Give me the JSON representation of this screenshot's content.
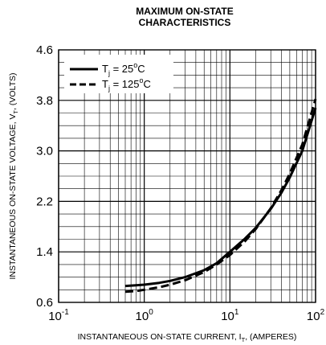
{
  "chart_data": {
    "type": "line",
    "title": [
      "MAXIMUM ON-STATE",
      "CHARACTERISTICS"
    ],
    "xlabel": {
      "prefix": "INSTANTANEOUS ON-STATE CURRENT, I",
      "sub": "T",
      "suffix": ", (AMPERES)"
    },
    "ylabel": {
      "prefix": "INSTANTANEOUS ON-STATE VOLTAGE, V",
      "sub": "T",
      "suffix": ", (VOLTS)"
    },
    "x_scale": "log",
    "xlim": [
      0.1,
      100
    ],
    "ylim": [
      0.6,
      4.6
    ],
    "x_ticks": [
      {
        "base": "10",
        "exp": "-1"
      },
      {
        "base": "10",
        "exp": "0"
      },
      {
        "base": "10",
        "exp": "1"
      },
      {
        "base": "10",
        "exp": "2"
      }
    ],
    "y_ticks": [
      "0.6",
      "1.4",
      "2.2",
      "3.0",
      "3.8",
      "4.6"
    ],
    "grid": true,
    "legend_position": "top-left",
    "series": [
      {
        "legend": {
          "base": "T",
          "sub": "j",
          "rest": " = 25",
          "sup": "o",
          "unit": "C"
        },
        "style": "solid",
        "x": [
          0.6,
          0.8,
          1,
          1.5,
          2,
          3,
          5,
          7,
          10,
          15,
          20,
          30,
          40,
          50,
          70,
          100
        ],
        "y": [
          0.86,
          0.87,
          0.88,
          0.91,
          0.94,
          1.0,
          1.11,
          1.22,
          1.4,
          1.61,
          1.78,
          2.08,
          2.34,
          2.58,
          3.0,
          3.68
        ]
      },
      {
        "legend": {
          "base": "T",
          "sub": "j",
          "rest": " = 125",
          "sup": "o",
          "unit": "C"
        },
        "style": "dashed",
        "x": [
          0.6,
          0.8,
          1,
          1.5,
          2,
          3,
          5,
          7,
          10,
          15,
          20,
          30,
          40,
          50,
          70,
          100
        ],
        "y": [
          0.77,
          0.78,
          0.8,
          0.84,
          0.88,
          0.95,
          1.08,
          1.2,
          1.35,
          1.57,
          1.76,
          2.09,
          2.38,
          2.64,
          3.1,
          3.82
        ]
      }
    ]
  }
}
